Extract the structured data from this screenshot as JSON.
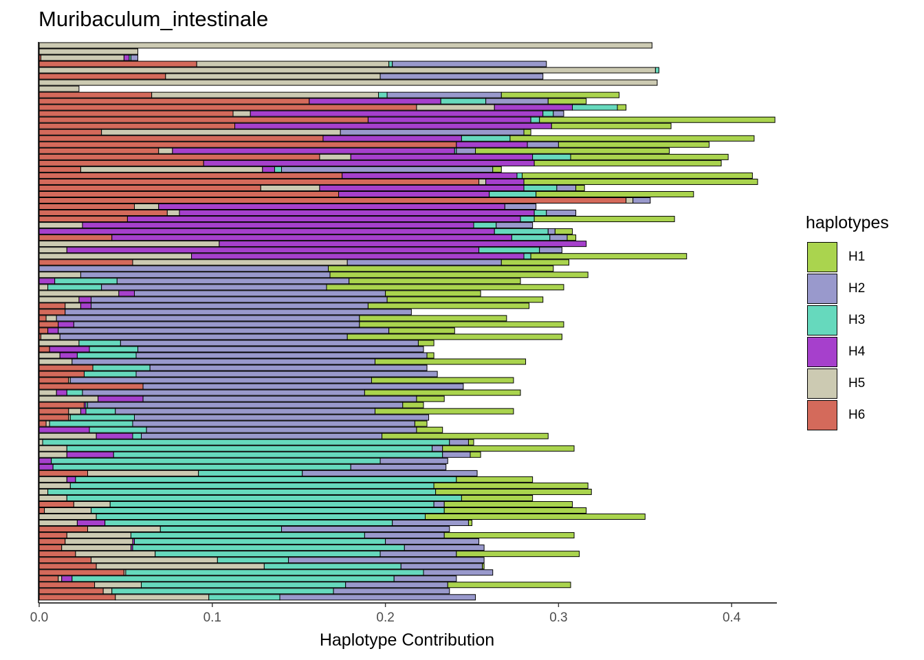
{
  "chart_data": {
    "type": "bar",
    "orientation": "horizontal",
    "stacked": true,
    "title": "Muribaculum_intestinale",
    "xlabel": "Haplotype Contribution",
    "ylabel": "",
    "xlim": [
      0,
      0.425
    ],
    "xticks": [
      0.0,
      0.1,
      0.2,
      0.3,
      0.4
    ],
    "xtick_labels": [
      "0.0",
      "0.1",
      "0.2",
      "0.3",
      "0.4"
    ],
    "grid": false,
    "legend": {
      "title": "haplotypes",
      "position": "right",
      "entries": [
        {
          "name": "H1",
          "color": "#AAD44E"
        },
        {
          "name": "H2",
          "color": "#9999CC"
        },
        {
          "name": "H3",
          "color": "#66D9BD"
        },
        {
          "name": "H4",
          "color": "#A640CC"
        },
        {
          "name": "H5",
          "color": "#CCCAB2"
        },
        {
          "name": "H6",
          "color": "#D46A5B"
        }
      ]
    },
    "stack_order": [
      "H6",
      "H5",
      "H4",
      "H3",
      "H2",
      "H1"
    ],
    "bars": [
      {
        "H5": 0.354
      },
      {
        "H5": 0.057
      },
      {
        "H6": 0.001,
        "H5": 0.048,
        "H4": 0.003,
        "H3": 0.001,
        "H2": 0.004
      },
      {
        "H6": 0.091,
        "H5": 0.111,
        "H3": 0.002,
        "H2": 0.089
      },
      {
        "H5": 0.356,
        "H3": 0.002
      },
      {
        "H6": 0.073,
        "H5": 0.124,
        "H2": 0.094
      },
      {
        "H5": 0.357
      },
      {
        "H5": 0.023
      },
      {
        "H6": 0.065,
        "H5": 0.131,
        "H3": 0.005,
        "H2": 0.066,
        "H1": 0.068
      },
      {
        "H6": 0.156,
        "H4": 0.076,
        "H3": 0.026,
        "H2": 0.036,
        "H1": 0.022
      },
      {
        "H6": 0.218,
        "H5": 0.045,
        "H4": 0.045,
        "H3": 0.026,
        "H1": 0.005
      },
      {
        "H6": 0.112,
        "H5": 0.01,
        "H4": 0.169,
        "H3": 0.006,
        "H2": 0.006
      },
      {
        "H6": 0.19,
        "H4": 0.094,
        "H3": 0.005,
        "H1": 0.136
      },
      {
        "H6": 0.113,
        "H4": 0.183,
        "H1": 0.069
      },
      {
        "H6": 0.036,
        "H5": 0.138,
        "H2": 0.106,
        "H1": 0.004
      },
      {
        "H6": 0.164,
        "H4": 0.08,
        "H3": 0.028,
        "H1": 0.141
      },
      {
        "H6": 0.241,
        "H4": 0.041,
        "H2": 0.018,
        "H1": 0.087
      },
      {
        "H6": 0.069,
        "H5": 0.008,
        "H4": 0.163,
        "H3": 0.001,
        "H2": 0.011,
        "H1": 0.112
      },
      {
        "H6": 0.162,
        "H5": 0.018,
        "H4": 0.105,
        "H3": 0.022,
        "H1": 0.091
      },
      {
        "H6": 0.095,
        "H4": 0.191,
        "H1": 0.108
      },
      {
        "H6": 0.024,
        "H5": 0.105,
        "H4": 0.007,
        "H3": 0.004,
        "H2": 0.122,
        "H1": 0.005
      },
      {
        "H6": 0.175,
        "H4": 0.101,
        "H3": 0.003,
        "H1": 0.133
      },
      {
        "H6": 0.254,
        "H5": 0.004,
        "H4": 0.022,
        "H1": 0.135
      },
      {
        "H6": 0.128,
        "H5": 0.034,
        "H4": 0.118,
        "H3": 0.019,
        "H2": 0.011,
        "H1": 0.005
      },
      {
        "H6": 0.173,
        "H4": 0.087,
        "H3": 0.027,
        "H1": 0.091
      },
      {
        "H6": 0.339,
        "H5": 0.004,
        "H2": 0.01
      },
      {
        "H6": 0.055,
        "H5": 0.014,
        "H4": 0.2,
        "H2": 0.018
      },
      {
        "H6": 0.074,
        "H5": 0.007,
        "H4": 0.205,
        "H3": 0.007,
        "H2": 0.017
      },
      {
        "H6": 0.051,
        "H4": 0.227,
        "H3": 0.008,
        "H1": 0.081
      },
      {
        "H5": 0.025,
        "H4": 0.226,
        "H3": 0.013,
        "H2": 0.021
      },
      {
        "H4": 0.263,
        "H3": 0.031,
        "H2": 0.004,
        "H1": 0.01
      },
      {
        "H6": 0.042,
        "H4": 0.231,
        "H3": 0.022,
        "H2": 0.01,
        "H1": 0.005
      },
      {
        "H5": 0.104,
        "H4": 0.212
      },
      {
        "H5": 0.016,
        "H4": 0.238,
        "H3": 0.035,
        "H2": 0.013
      },
      {
        "H5": 0.088,
        "H4": 0.192,
        "H3": 0.004,
        "H1": 0.09
      },
      {
        "H6": 0.054,
        "H5": 0.124,
        "H2": 0.089,
        "H1": 0.039
      },
      {
        "H2": 0.167,
        "H1": 0.13
      },
      {
        "H5": 0.024,
        "H2": 0.144,
        "H1": 0.149
      },
      {
        "H4": 0.009,
        "H3": 0.036,
        "H2": 0.134,
        "H1": 0.099
      },
      {
        "H5": 0.005,
        "H3": 0.031,
        "H2": 0.13,
        "H1": 0.137
      },
      {
        "H5": 0.046,
        "H4": 0.009,
        "H2": 0.145,
        "H1": 0.055
      },
      {
        "H5": 0.023,
        "H4": 0.007,
        "H2": 0.171,
        "H1": 0.09
      },
      {
        "H6": 0.015,
        "H5": 0.009,
        "H4": 0.006,
        "H2": 0.16,
        "H1": 0.093
      },
      {
        "H6": 0.015,
        "H2": 0.2
      },
      {
        "H6": 0.004,
        "H5": 0.006,
        "H2": 0.175,
        "H1": 0.085
      },
      {
        "H6": 0.011,
        "H4": 0.009,
        "H2": 0.165,
        "H1": 0.118
      },
      {
        "H6": 0.005,
        "H4": 0.006,
        "H2": 0.191,
        "H1": 0.038
      },
      {
        "H6": 0.001,
        "H5": 0.011,
        "H2": 0.166,
        "H1": 0.124
      },
      {
        "H5": 0.023,
        "H3": 0.024,
        "H2": 0.172,
        "H1": 0.009
      },
      {
        "H6": 0.006,
        "H4": 0.023,
        "H3": 0.028,
        "H2": 0.165
      },
      {
        "H5": 0.012,
        "H4": 0.01,
        "H3": 0.034,
        "H2": 0.168,
        "H1": 0.004
      },
      {
        "H5": 0.019,
        "H2": 0.175,
        "H1": 0.087
      },
      {
        "H6": 0.031,
        "H3": 0.033,
        "H2": 0.16
      },
      {
        "H6": 0.026,
        "H3": 0.03,
        "H2": 0.174
      },
      {
        "H6": 0.017,
        "H5": 0.001,
        "H2": 0.174,
        "H1": 0.082
      },
      {
        "H6": 0.06,
        "H2": 0.185
      },
      {
        "H5": 0.01,
        "H4": 0.006,
        "H3": 0.009,
        "H2": 0.163,
        "H1": 0.09
      },
      {
        "H5": 0.034,
        "H4": 0.026,
        "H2": 0.158,
        "H1": 0.016
      },
      {
        "H6": 0.026,
        "H4": 0.001,
        "H3": 0.001,
        "H2": 0.182,
        "H1": 0.012
      },
      {
        "H6": 0.017,
        "H5": 0.007,
        "H4": 0.003,
        "H3": 0.017,
        "H2": 0.15,
        "H1": 0.08
      },
      {
        "H6": 0.017,
        "H5": 0.001,
        "H3": 0.037,
        "H2": 0.17
      },
      {
        "H6": 0.004,
        "H5": 0.002,
        "H3": 0.048,
        "H2": 0.163,
        "H1": 0.007
      },
      {
        "H4": 0.029,
        "H3": 0.033,
        "H2": 0.156,
        "H1": 0.015
      },
      {
        "H5": 0.033,
        "H4": 0.021,
        "H3": 0.005,
        "H2": 0.139,
        "H1": 0.096
      },
      {
        "H5": 0.002,
        "H3": 0.235,
        "H2": 0.011,
        "H1": 0.003
      },
      {
        "H5": 0.016,
        "H3": 0.211,
        "H2": 0.006,
        "H1": 0.076
      },
      {
        "H5": 0.016,
        "H4": 0.027,
        "H3": 0.19,
        "H2": 0.016,
        "H1": 0.006
      },
      {
        "H4": 0.007,
        "H3": 0.19,
        "H2": 0.039
      },
      {
        "H4": 0.008,
        "H3": 0.172,
        "H2": 0.055
      },
      {
        "H6": 0.028,
        "H5": 0.064,
        "H3": 0.06,
        "H2": 0.101
      },
      {
        "H5": 0.016,
        "H4": 0.005,
        "H3": 0.22,
        "H1": 0.044
      },
      {
        "H5": 0.018,
        "H3": 0.21,
        "H1": 0.089
      },
      {
        "H5": 0.005,
        "H3": 0.224,
        "H1": 0.09
      },
      {
        "H5": 0.016,
        "H3": 0.228,
        "H1": 0.041
      },
      {
        "H6": 0.02,
        "H5": 0.021,
        "H3": 0.187,
        "H2": 0.006,
        "H1": 0.074
      },
      {
        "H6": 0.003,
        "H5": 0.027,
        "H3": 0.204,
        "H1": 0.082
      },
      {
        "H5": 0.033,
        "H3": 0.19,
        "H1": 0.127,
        "H2": 0.0
      },
      {
        "H5": 0.022,
        "H4": 0.016,
        "H3": 0.166,
        "H2": 0.044,
        "H1": 0.002
      },
      {
        "H6": 0.028,
        "H5": 0.042,
        "H3": 0.07,
        "H2": 0.097
      },
      {
        "H6": 0.016,
        "H5": 0.037,
        "H3": 0.135,
        "H2": 0.046,
        "H1": 0.075
      },
      {
        "H6": 0.015,
        "H5": 0.039,
        "H4": 0.001,
        "H3": 0.145,
        "H2": 0.054
      },
      {
        "H6": 0.013,
        "H5": 0.04,
        "H4": 0.001,
        "H3": 0.157,
        "H2": 0.046
      },
      {
        "H6": 0.021,
        "H5": 0.046,
        "H3": 0.13,
        "H2": 0.044,
        "H1": 0.071
      },
      {
        "H6": 0.03,
        "H5": 0.073,
        "H3": 0.041,
        "H2": 0.113
      },
      {
        "H6": 0.033,
        "H5": 0.097,
        "H3": 0.079,
        "H2": 0.047,
        "H1": 0.001
      },
      {
        "H6": 0.049,
        "H5": 0.001,
        "H3": 0.172,
        "H2": 0.04
      },
      {
        "H6": 0.011,
        "H5": 0.002,
        "H4": 0.006,
        "H3": 0.186,
        "H2": 0.036
      },
      {
        "H6": 0.032,
        "H5": 0.027,
        "H3": 0.118,
        "H2": 0.059,
        "H1": 0.071
      },
      {
        "H6": 0.037,
        "H5": 0.005,
        "H3": 0.128,
        "H2": 0.067
      },
      {
        "H6": 0.044,
        "H5": 0.054,
        "H3": 0.041,
        "H2": 0.113
      }
    ]
  }
}
